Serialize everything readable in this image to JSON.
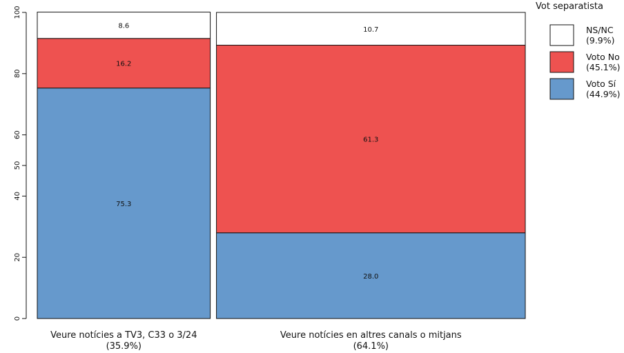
{
  "chart_data": {
    "type": "bar",
    "subtype": "mosaic",
    "y_range": [
      0,
      100
    ],
    "y_ticks": [
      "0",
      "20",
      "40",
      "50",
      "60",
      "80",
      "100"
    ],
    "categories": [
      {
        "label": "Veure notícies a TV3, C33 o 3/24",
        "share_label": "(35.9%)",
        "share": 35.9
      },
      {
        "label": "Veure notícies en altres canals o mitjans",
        "share_label": "(64.1%)",
        "share": 64.1
      }
    ],
    "series": [
      {
        "name": "Voto Sí",
        "share_label": "(44.9%)",
        "color": "#6699cc",
        "values": [
          75.3,
          28.0
        ],
        "labels": [
          "75.3",
          "28.0"
        ]
      },
      {
        "name": "Voto No",
        "share_label": "(45.1%)",
        "color": "#ee5250",
        "values": [
          16.2,
          61.3
        ],
        "labels": [
          "16.2",
          "61.3"
        ]
      },
      {
        "name": "NS/NC",
        "share_label": "(9.9%)",
        "color": "#ffffff",
        "values": [
          8.6,
          10.7
        ],
        "labels": [
          "8.6",
          "10.7"
        ]
      }
    ],
    "legend": {
      "title": "Vot separatista",
      "position": "right",
      "order": [
        "NS/NC",
        "Voto No",
        "Voto Sí"
      ]
    },
    "grid": false
  }
}
